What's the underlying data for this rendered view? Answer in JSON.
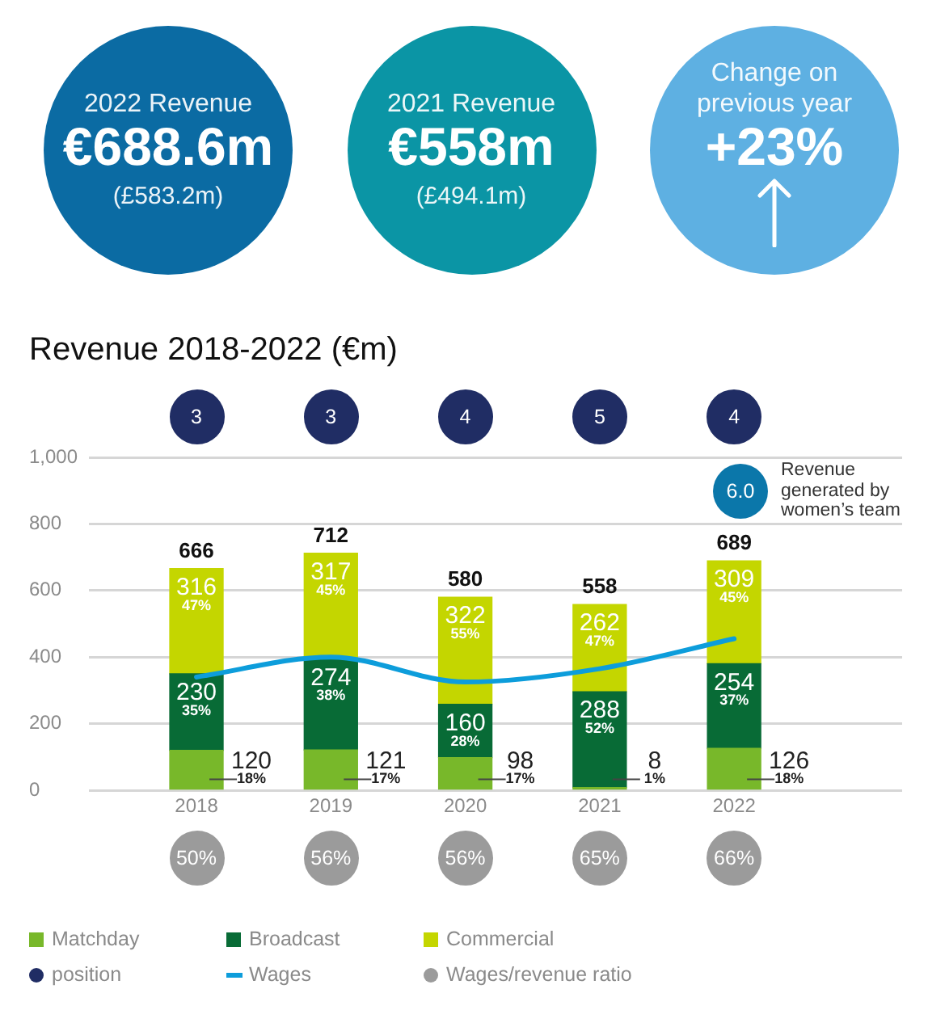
{
  "chart_data": [
    {
      "type": "other",
      "categories": [
        "2022 Revenue",
        "2021 Revenue",
        "Change on previous year"
      ],
      "value_labels": [
        "€688.6m",
        "€558m",
        "+23%"
      ],
      "annotations": [
        "(£583.2m)",
        "(£494.1m)"
      ],
      "colors": [
        "#0b6ba3",
        "#0b95a5",
        "#5eb0e2"
      ]
    },
    {
      "type": "other",
      "series": [
        {
          "name": "position",
          "color": "#202d64",
          "values": [
            3,
            3,
            4,
            5,
            4
          ]
        }
      ],
      "data_labels": true,
      "legend": "bottom"
    },
    {
      "type": "bar",
      "title": "Revenue 2018-2022 (€m)",
      "categories": [
        "2018",
        "2019",
        "2020",
        "2021",
        "2022"
      ],
      "series": [
        {
          "name": "Matchday",
          "color": "#78b82a",
          "values": [
            120,
            121,
            98,
            8,
            126
          ],
          "value_labels": [
            "120\n18%",
            "121\n17%",
            "98\n17%",
            "8\n1%",
            "126\n18%"
          ]
        },
        {
          "name": "Broadcast",
          "color": "#086b36",
          "values": [
            230,
            274,
            160,
            288,
            254
          ],
          "value_labels": [
            "230\n35%",
            "274\n38%",
            "160\n28%",
            "288\n52%",
            "254\n37%"
          ]
        },
        {
          "name": "Commercial",
          "color": "#c4d600",
          "values": [
            316,
            317,
            322,
            262,
            309
          ],
          "value_labels": [
            "316\n47%",
            "317\n45%",
            "322\n55%",
            "262\n47%",
            "309\n45%"
          ]
        },
        {
          "name": "Wages",
          "type": "line",
          "color": "#0d9ddb",
          "values": [
            340,
            400,
            325,
            365,
            455
          ]
        }
      ],
      "totals": [
        "666",
        "712",
        "580",
        "558",
        "689"
      ],
      "stacked": true,
      "ylim": [
        0,
        1000
      ],
      "yticks": [
        0,
        200,
        400,
        600,
        800,
        {
          "value": 1000,
          "label": "1,000"
        }
      ],
      "grid": "y",
      "legend": "bottom",
      "marker": "none"
    },
    {
      "type": "other",
      "series": [
        {
          "name": "Wages/revenue ratio",
          "color": "#9b9b9b",
          "values": [
            50,
            56,
            56,
            65,
            66
          ],
          "value_labels": [
            "50%",
            "56%",
            "56%",
            "65%",
            "66%"
          ]
        }
      ],
      "legend": "bottom"
    },
    {
      "type": "other",
      "categories": [
        "Revenue generated by women’s team"
      ],
      "value_labels": [
        "6.0"
      ],
      "colors": [
        "#0b77aa"
      ]
    }
  ]
}
